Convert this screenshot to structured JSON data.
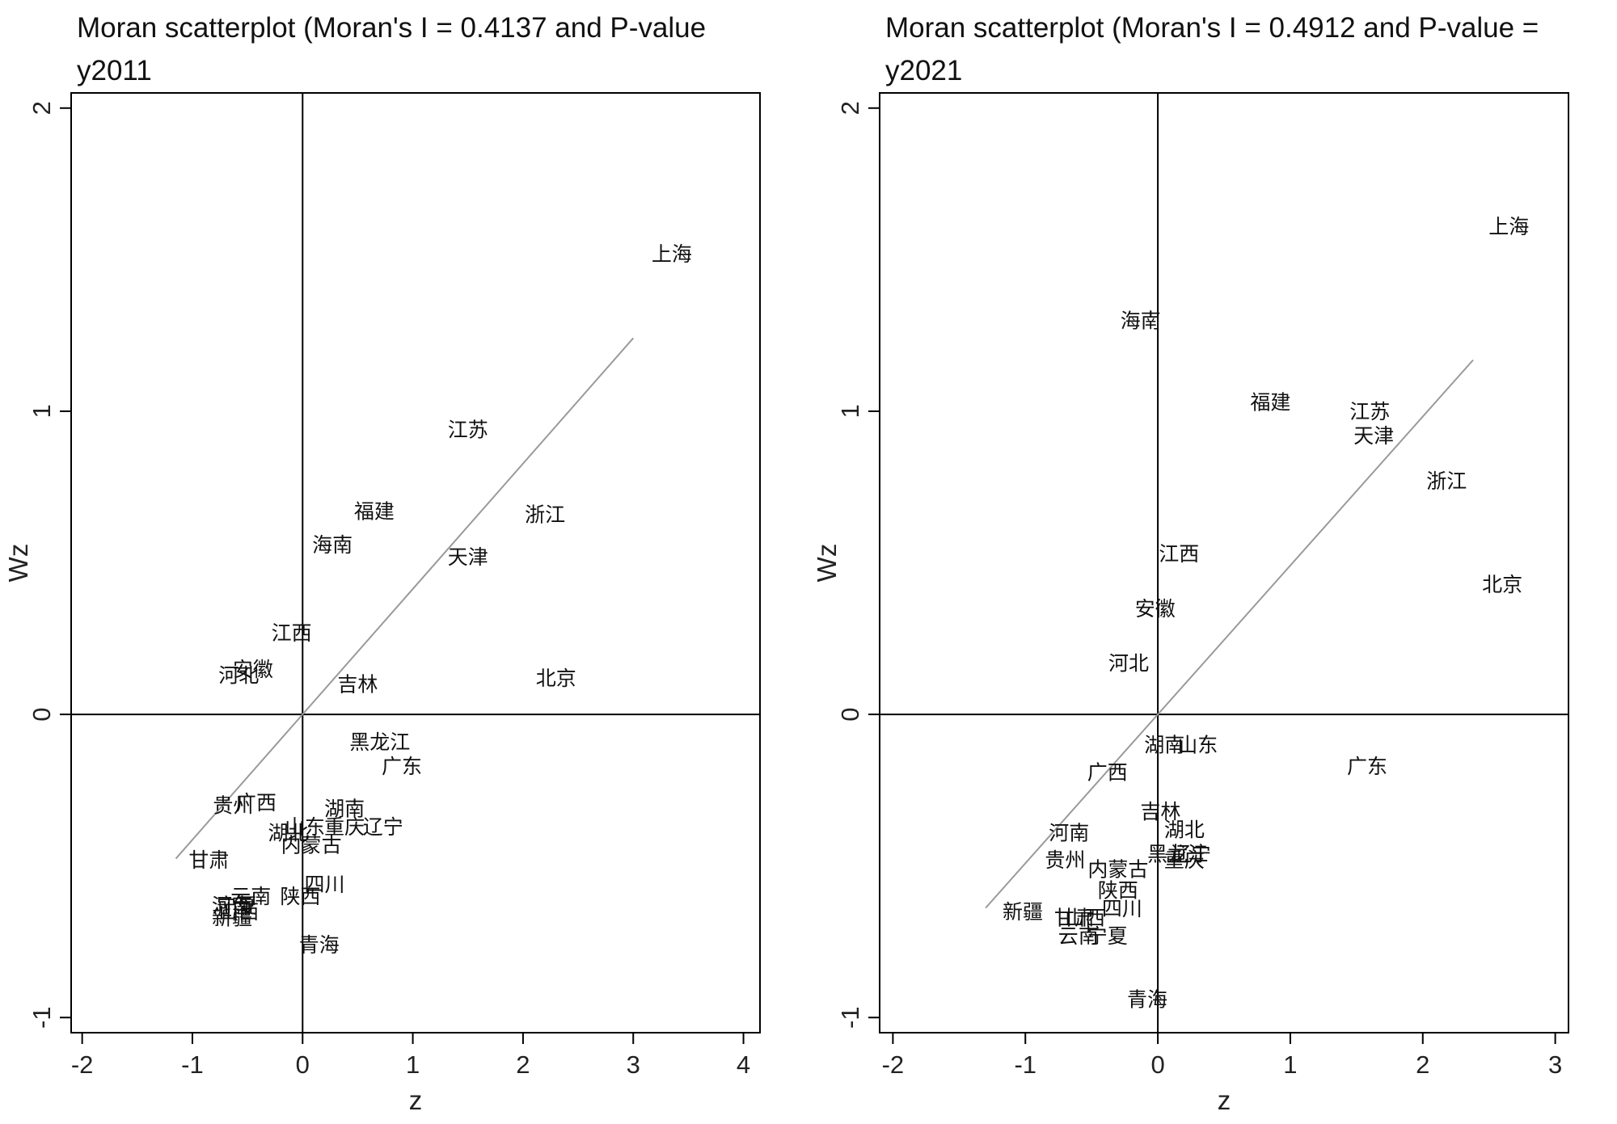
{
  "chart_data": [
    {
      "type": "scatter",
      "title_line1": "Moran scatterplot (Moran's I = 0.4137 and P-value",
      "title_line2": "y2011",
      "xlabel": "z",
      "ylabel": "Wz",
      "xlim": [
        -2.1,
        4.15
      ],
      "ylim": [
        -1.05,
        2.05
      ],
      "xticks": [
        -2,
        -1,
        0,
        1,
        2,
        3,
        4
      ],
      "yticks": [
        -1,
        0,
        1,
        2
      ],
      "fit_line": {
        "slope": 0.4137,
        "x_range": [
          -1.15,
          3.0
        ]
      },
      "colors": {
        "fit_line": "#9a9a9a",
        "axis": "#000000",
        "ref_lines": "#000000"
      },
      "points": [
        {
          "label": "上海",
          "x": 3.35,
          "y": 1.52
        },
        {
          "label": "江苏",
          "x": 1.5,
          "y": 0.94
        },
        {
          "label": "浙江",
          "x": 2.2,
          "y": 0.66
        },
        {
          "label": "福建",
          "x": 0.65,
          "y": 0.67
        },
        {
          "label": "海南",
          "x": 0.27,
          "y": 0.56
        },
        {
          "label": "天津",
          "x": 1.5,
          "y": 0.52
        },
        {
          "label": "江西",
          "x": -0.1,
          "y": 0.27
        },
        {
          "label": "安徽",
          "x": -0.45,
          "y": 0.15
        },
        {
          "label": "河北",
          "x": -0.58,
          "y": 0.13
        },
        {
          "label": "吉林",
          "x": 0.5,
          "y": 0.1
        },
        {
          "label": "北京",
          "x": 2.3,
          "y": 0.12
        },
        {
          "label": "黑龙江",
          "x": 0.7,
          "y": -0.09
        },
        {
          "label": "广东",
          "x": 0.9,
          "y": -0.17
        },
        {
          "label": "贵州",
          "x": -0.63,
          "y": -0.3
        },
        {
          "label": "广西",
          "x": -0.42,
          "y": -0.29
        },
        {
          "label": "湖南",
          "x": 0.38,
          "y": -0.31
        },
        {
          "label": "山东",
          "x": 0.02,
          "y": -0.37
        },
        {
          "label": "重庆",
          "x": 0.38,
          "y": -0.37
        },
        {
          "label": "辽宁",
          "x": 0.73,
          "y": -0.37
        },
        {
          "label": "湖北",
          "x": -0.13,
          "y": -0.39
        },
        {
          "label": "内蒙古",
          "x": 0.08,
          "y": -0.43
        },
        {
          "label": "四川",
          "x": 0.2,
          "y": -0.56
        },
        {
          "label": "云南",
          "x": -0.47,
          "y": -0.6
        },
        {
          "label": "陕西",
          "x": -0.02,
          "y": -0.6
        },
        {
          "label": "甘肃",
          "x": -0.85,
          "y": -0.48
        },
        {
          "label": "河南",
          "x": -0.64,
          "y": -0.63
        },
        {
          "label": "宁夏",
          "x": -0.6,
          "y": -0.63
        },
        {
          "label": "山西",
          "x": -0.58,
          "y": -0.65
        },
        {
          "label": "新疆",
          "x": -0.64,
          "y": -0.67
        },
        {
          "label": "青海",
          "x": 0.15,
          "y": -0.76
        }
      ]
    },
    {
      "type": "scatter",
      "title_line1": "Moran scatterplot (Moran's I = 0.4912 and P-value =",
      "title_line2": "y2021",
      "xlabel": "z",
      "ylabel": "Wz",
      "xlim": [
        -2.1,
        3.1
      ],
      "ylim": [
        -1.05,
        2.05
      ],
      "xticks": [
        -2,
        -1,
        0,
        1,
        2,
        3
      ],
      "yticks": [
        -1,
        0,
        1,
        2
      ],
      "fit_line": {
        "slope": 0.4912,
        "x_range": [
          -1.3,
          2.38
        ]
      },
      "colors": {
        "fit_line": "#9a9a9a",
        "axis": "#000000",
        "ref_lines": "#000000"
      },
      "points": [
        {
          "label": "上海",
          "x": 2.65,
          "y": 1.61
        },
        {
          "label": "海南",
          "x": -0.13,
          "y": 1.3
        },
        {
          "label": "福建",
          "x": 0.85,
          "y": 1.03
        },
        {
          "label": "江苏",
          "x": 1.6,
          "y": 1.0
        },
        {
          "label": "天津",
          "x": 1.63,
          "y": 0.92
        },
        {
          "label": "浙江",
          "x": 2.18,
          "y": 0.77
        },
        {
          "label": "江西",
          "x": 0.16,
          "y": 0.53
        },
        {
          "label": "北京",
          "x": 2.6,
          "y": 0.43
        },
        {
          "label": "安徽",
          "x": -0.02,
          "y": 0.35
        },
        {
          "label": "河北",
          "x": -0.22,
          "y": 0.17
        },
        {
          "label": "湖南",
          "x": 0.05,
          "y": -0.1
        },
        {
          "label": "山东",
          "x": 0.3,
          "y": -0.1
        },
        {
          "label": "广东",
          "x": 1.58,
          "y": -0.17
        },
        {
          "label": "广西",
          "x": -0.38,
          "y": -0.19
        },
        {
          "label": "吉林",
          "x": 0.02,
          "y": -0.32
        },
        {
          "label": "湖北",
          "x": 0.2,
          "y": -0.38
        },
        {
          "label": "河南",
          "x": -0.67,
          "y": -0.39
        },
        {
          "label": "黑龙江",
          "x": 0.15,
          "y": -0.46
        },
        {
          "label": "辽宁",
          "x": 0.25,
          "y": -0.46
        },
        {
          "label": "重庆",
          "x": 0.2,
          "y": -0.48
        },
        {
          "label": "贵州",
          "x": -0.7,
          "y": -0.48
        },
        {
          "label": "内蒙古",
          "x": -0.3,
          "y": -0.51
        },
        {
          "label": "陕西",
          "x": -0.3,
          "y": -0.58
        },
        {
          "label": "四川",
          "x": -0.27,
          "y": -0.64
        },
        {
          "label": "山西",
          "x": -0.55,
          "y": -0.67
        },
        {
          "label": "新疆",
          "x": -1.02,
          "y": -0.65
        },
        {
          "label": "甘肃",
          "x": -0.63,
          "y": -0.67
        },
        {
          "label": "云南",
          "x": -0.6,
          "y": -0.73
        },
        {
          "label": "宁夏",
          "x": -0.38,
          "y": -0.73
        },
        {
          "label": "青海",
          "x": -0.08,
          "y": -0.94
        }
      ]
    }
  ]
}
